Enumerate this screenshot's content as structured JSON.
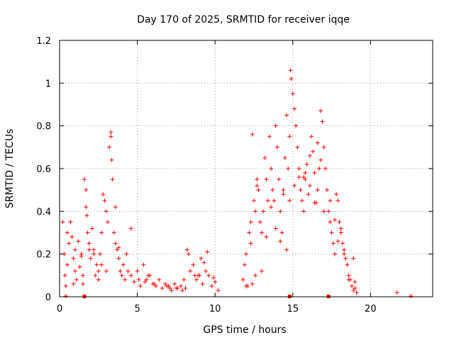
{
  "chart_data": {
    "type": "scatter",
    "title": "Day 170 of 2025, SRMTID for receiver iqqe",
    "xlabel": "GPS time / hours",
    "ylabel": "SRMTID / TECUs",
    "xlim": [
      0,
      24
    ],
    "ylim": [
      0,
      1.2
    ],
    "xticks": [
      0,
      5,
      10,
      15,
      20
    ],
    "xtick_labels": [
      "0",
      "5",
      "10",
      "15",
      "20"
    ],
    "yticks": [
      0,
      0.2,
      0.4,
      0.6,
      0.8,
      1,
      1.2
    ],
    "ytick_labels": [
      "0",
      "0.2",
      "0.4",
      "0.6",
      "0.8",
      "1",
      "1.2"
    ],
    "grid": true,
    "marker": "+",
    "series": [
      {
        "name": "SRMTID",
        "color": "#ff0000",
        "x": [
          0.2,
          0.3,
          0.35,
          0.4,
          0.5,
          0.5,
          0.6,
          0.7,
          0.8,
          0.9,
          1.0,
          1.0,
          1.1,
          1.2,
          1.3,
          1.4,
          1.5,
          1.6,
          1.7,
          1.7,
          1.75,
          1.8,
          1.9,
          2.0,
          2.1,
          2.2,
          2.3,
          2.4,
          2.5,
          2.6,
          2.7,
          2.8,
          2.9,
          3.0,
          3.1,
          3.2,
          3.3,
          3.3,
          3.35,
          3.4,
          3.5,
          3.6,
          3.7,
          3.8,
          3.9,
          4.0,
          4.1,
          4.2,
          4.4,
          4.6,
          4.8,
          5.0,
          5.2,
          5.4,
          5.6,
          5.8,
          6.0,
          6.2,
          6.4,
          6.6,
          6.8,
          7.0,
          7.2,
          7.4,
          7.6,
          7.8,
          8.0,
          8.2,
          8.3,
          8.4,
          8.6,
          8.8,
          9.0,
          9.2,
          9.4,
          9.5,
          9.6,
          9.8,
          10.0,
          10.2,
          11.8,
          11.9,
          12.0,
          12.1,
          12.2,
          12.3,
          12.3,
          12.4,
          12.5,
          12.6,
          12.7,
          12.8,
          12.9,
          13.0,
          13.1,
          13.2,
          13.3,
          13.4,
          13.5,
          13.6,
          13.7,
          13.8,
          13.9,
          14.0,
          14.1,
          14.2,
          14.3,
          14.4,
          14.5,
          14.6,
          14.7,
          14.8,
          14.8,
          14.85,
          14.9,
          15.0,
          15.1,
          15.2,
          15.3,
          15.4,
          15.5,
          15.6,
          15.7,
          15.8,
          15.9,
          16.0,
          16.1,
          16.2,
          16.3,
          16.4,
          16.5,
          16.6,
          16.7,
          16.8,
          16.9,
          17.0,
          17.1,
          17.2,
          17.3,
          17.4,
          17.5,
          17.6,
          17.7,
          17.8,
          17.9,
          18.0,
          18.1,
          18.2,
          18.3,
          18.4,
          18.5,
          18.6,
          18.7,
          18.8,
          18.9,
          19.0,
          19.1,
          21.7,
          22.6,
          0.4,
          0.8,
          1.5,
          2.2,
          3.0,
          3.6,
          4.3,
          5.1,
          6.1,
          7.1,
          7.9,
          8.7,
          9.3,
          9.9,
          12.0,
          12.6,
          13.3,
          13.9,
          14.6,
          15.1,
          15.8,
          16.4,
          17.0,
          17.7,
          18.3,
          18.9,
          0.9,
          1.9,
          2.7,
          4.6,
          5.7,
          6.9,
          8.1,
          9.1,
          12.4,
          13.0,
          13.6,
          14.2,
          15.4,
          16.1,
          16.8,
          17.4,
          18.1,
          18.6,
          1.4,
          2.5,
          3.8,
          5.5,
          7.5,
          8.9,
          12.7,
          14.4,
          15.7,
          16.6,
          17.9,
          19.0
        ],
        "y": [
          0.35,
          0.2,
          0.1,
          0.05,
          0.3,
          0.15,
          0.25,
          0.35,
          0.28,
          0.18,
          0.12,
          0.22,
          0.08,
          0.26,
          0.14,
          0.2,
          0.06,
          0.55,
          0.5,
          0.42,
          0.38,
          0.3,
          0.25,
          0.18,
          0.32,
          0.22,
          0.1,
          0.15,
          0.08,
          0.2,
          0.3,
          0.48,
          0.45,
          0.4,
          0.35,
          0.7,
          0.77,
          0.75,
          0.64,
          0.55,
          0.3,
          0.25,
          0.22,
          0.18,
          0.12,
          0.1,
          0.15,
          0.08,
          0.12,
          0.1,
          0.07,
          0.12,
          0.05,
          0.15,
          0.08,
          0.1,
          0.06,
          0.05,
          0.08,
          0.04,
          0.06,
          0.05,
          0.03,
          0.06,
          0.04,
          0.05,
          0.08,
          0.22,
          0.2,
          0.12,
          0.15,
          0.08,
          0.1,
          0.06,
          0.12,
          0.21,
          0.1,
          0.05,
          0.07,
          0.03,
          0.08,
          0.15,
          0.2,
          0.05,
          0.3,
          0.35,
          0.25,
          0.76,
          0.45,
          0.4,
          0.55,
          0.5,
          0.35,
          0.3,
          0.4,
          0.65,
          0.55,
          0.45,
          0.75,
          0.6,
          0.5,
          0.45,
          0.8,
          0.7,
          0.55,
          0.4,
          0.3,
          0.5,
          0.65,
          0.85,
          0.6,
          0.45,
          0.75,
          1.06,
          1.02,
          0.95,
          0.88,
          0.8,
          0.7,
          0.6,
          0.5,
          0.45,
          0.4,
          0.55,
          0.62,
          0.48,
          0.52,
          0.75,
          0.68,
          0.58,
          0.44,
          0.5,
          0.6,
          0.87,
          0.82,
          0.7,
          0.6,
          0.5,
          0.4,
          0.35,
          0.3,
          0.25,
          0.2,
          0.48,
          0.45,
          0.35,
          0.3,
          0.25,
          0.2,
          0.18,
          0.15,
          0.1,
          0.08,
          0.05,
          0.03,
          0.07,
          0.02,
          0.02,
          0.0,
          0.0,
          0.28,
          0.1,
          0.2,
          0.12,
          0.42,
          0.2,
          0.08,
          0.06,
          0.04,
          0.03,
          0.1,
          0.16,
          0.09,
          0.05,
          0.1,
          0.28,
          0.32,
          0.22,
          0.52,
          0.58,
          0.44,
          0.4,
          0.36,
          0.22,
          0.18,
          0.06,
          0.22,
          0.15,
          0.32,
          0.1,
          0.05,
          0.04,
          0.18,
          0.06,
          0.12,
          0.42,
          0.26,
          0.56,
          0.66,
          0.64,
          0.45,
          0.32,
          0.08,
          0.19,
          0.12,
          0.23,
          0.07,
          0.04,
          0.1,
          0.52,
          0.48,
          0.56,
          0.72,
          0.26,
          0.04
        ]
      }
    ],
    "baseline_markers_x": [
      1.6,
      14.8,
      17.3
    ]
  }
}
